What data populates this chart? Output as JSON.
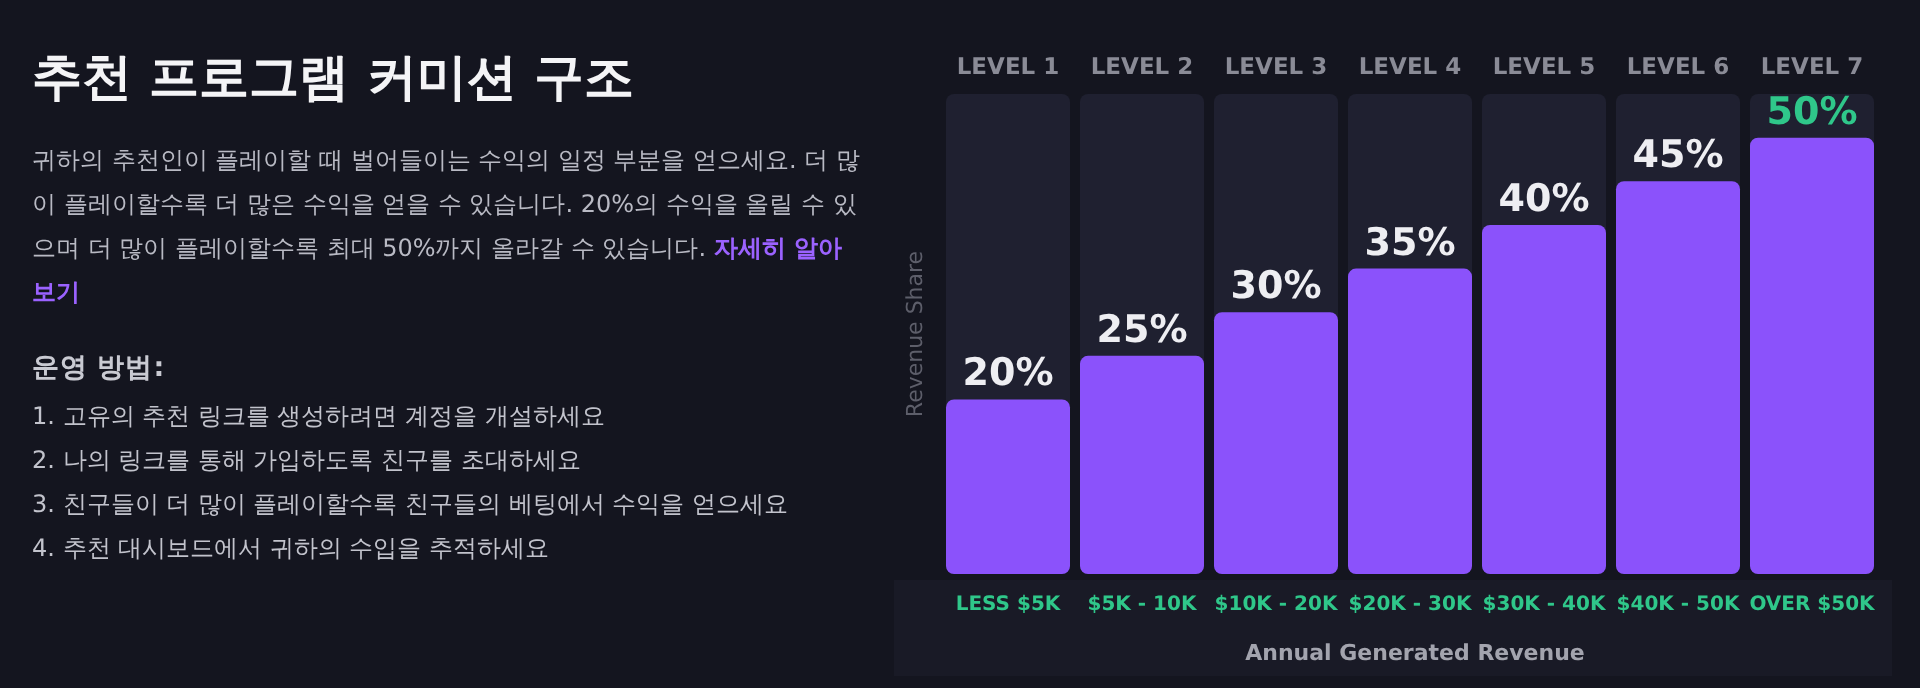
{
  "chart_data": {
    "type": "bar",
    "title": "추천 프로그램 커미션 구조",
    "subtitle": "귀하의 추천인이 플레이할 때 벌어들이는 수익의 일정 부분을 얻으세요. 더 많이 플레이할수록 더 많은 수익을 얻을 수 있습니다. 20%의 수익을 올릴 수 있으며 더 많이 플레이할수록 최대 50%까지 올라갈 수 있습니다.",
    "annotations": [
      "자세히 알아보기",
      "운영 방법:",
      "1. 고유의 추천 링크를 생성하려면 계정을 개설하세요",
      "2. 나의 링크를 통해 가입하도록 친구를 초대하세요",
      "3. 친구들이 더 많이 플레이할수록 친구들의 베팅에서 수익을 얻으세요",
      "4. 추천 대시보드에서 귀하의 수입을 추적하세요",
      "LEVEL 1",
      "LEVEL 2",
      "LEVEL 3",
      "LEVEL 4",
      "LEVEL 5",
      "LEVEL 6",
      "LEVEL 7"
    ],
    "categories": [
      "LESS $5K",
      "$5K - 10K",
      "$10K - 20K",
      "$20K - 30K",
      "$30K - 40K",
      "$40K - 50K",
      "OVER $50K"
    ],
    "values": [
      20,
      25,
      30,
      35,
      40,
      45,
      50
    ],
    "value_labels": [
      "20%",
      "25%",
      "30%",
      "35%",
      "40%",
      "45%",
      "50%"
    ],
    "color": "#8b52fb",
    "ylim": [
      0,
      55
    ],
    "xlabel": "Annual Generated Revenue",
    "ylabel": "Revenue Share",
    "tick_labels": "x"
  }
}
